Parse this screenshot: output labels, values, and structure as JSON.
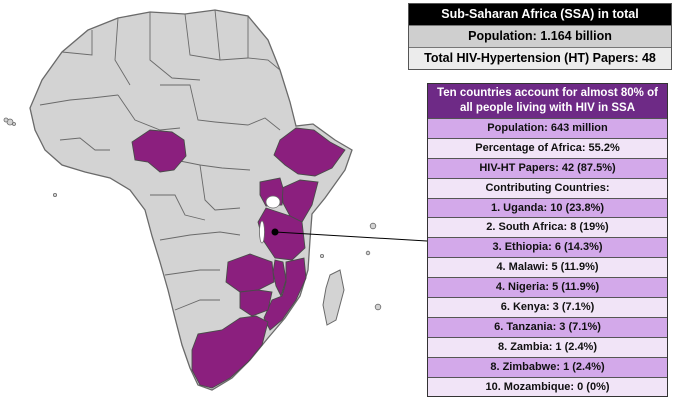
{
  "summary": {
    "title": "Sub-Saharan Africa (SSA) in total",
    "population": "Population: 1.164 billion",
    "papers": "Total HIV-Hypertension (HT) Papers: 48"
  },
  "detail": {
    "title": "Ten countries account for almost 80% of all people living with HIV in SSA",
    "population": "Population: 643 million",
    "percentage": "Percentage of Africa: 55.2%",
    "papers": "HIV-HT Papers: 42 (87.5%)",
    "contributing_header": "Contributing Countries:",
    "countries": [
      "1. Uganda: 10 (23.8%)",
      "2. South Africa: 8 (19%)",
      "3. Ethiopia: 6 (14.3%)",
      "4. Malawi: 5 (11.9%)",
      "4. Nigeria: 5 (11.9%)",
      "6. Kenya: 3 (7.1%)",
      "6. Tanzania: 3 (7.1%)",
      "8. Zambia: 1 (2.4%)",
      "8. Zimbabwe: 1 (2.4%)",
      "10. Mozambique: 0 (0%)"
    ]
  },
  "colors": {
    "highlight": "#8b1f7e",
    "land": "#d3d3d3",
    "border": "#6a6a6a",
    "header_purple": "#6e2a86",
    "row_dark": "#d3a9ea",
    "row_light": "#f1e4f7"
  }
}
